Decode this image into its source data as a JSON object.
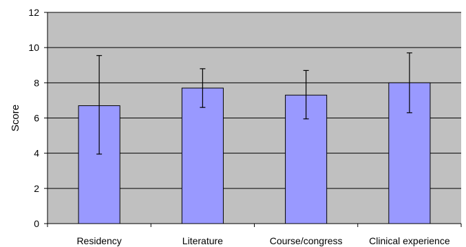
{
  "chart_data": {
    "type": "bar",
    "title": "",
    "xlabel": "",
    "ylabel": "Score",
    "ylim": [
      0,
      12
    ],
    "yticks": [
      0,
      2,
      4,
      6,
      8,
      10,
      12
    ],
    "categories": [
      "Residency",
      "Literature",
      "Course/congress",
      "Clinical experience"
    ],
    "values": [
      6.7,
      7.7,
      7.3,
      8.0
    ],
    "error_low": [
      3.95,
      6.6,
      5.95,
      6.3
    ],
    "error_high": [
      9.55,
      8.8,
      8.7,
      9.7
    ],
    "grid": true,
    "legend": "none",
    "colors": {
      "plot_background": "#c0c0c0",
      "bar_fill": "#9999ff",
      "bar_stroke": "#000000",
      "grid": "#000000",
      "error_bar": "#000000"
    }
  }
}
